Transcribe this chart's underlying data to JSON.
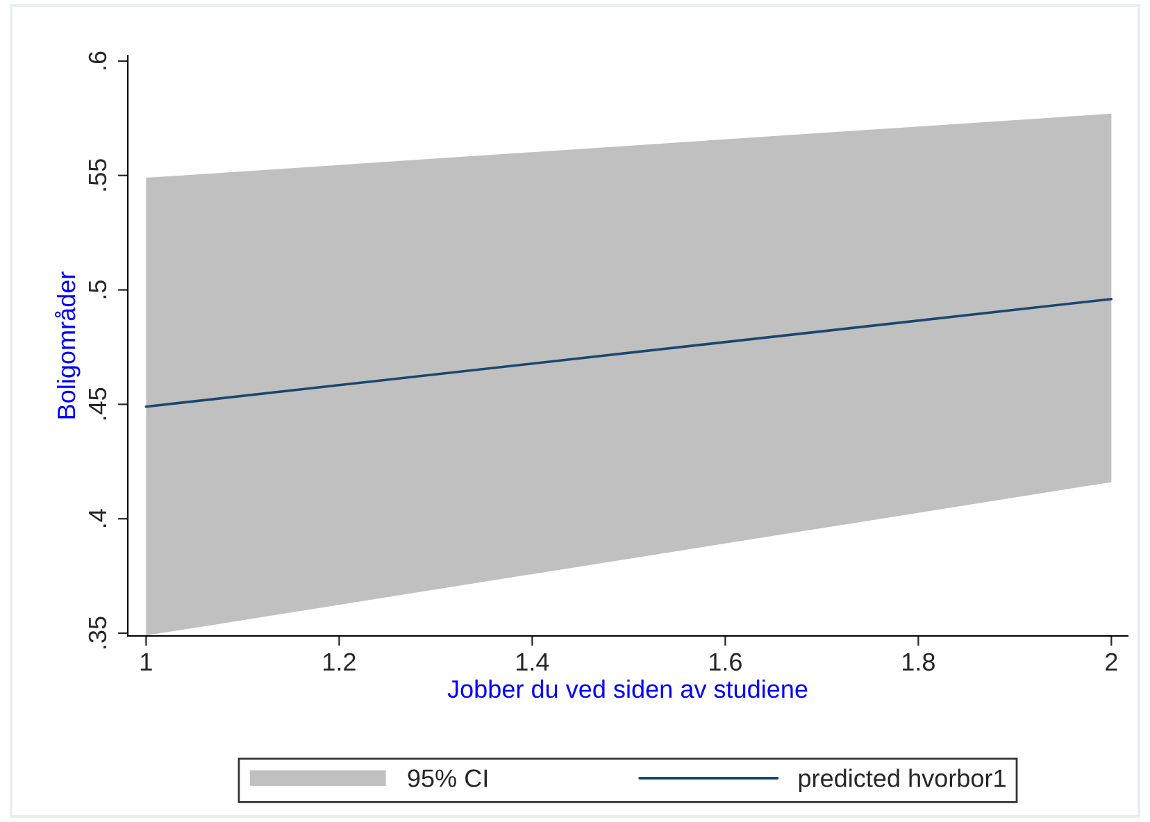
{
  "chart_data": {
    "type": "line",
    "xlabel": "Jobber du ved siden av studiene",
    "ylabel": "Boligområder",
    "x": [
      1,
      2
    ],
    "series": [
      {
        "name": "predicted hvorbor1",
        "type": "line",
        "color": "#1a476f",
        "values": [
          0.449,
          0.496
        ],
        "lower": [
          0.349,
          0.416
        ],
        "upper": [
          0.549,
          0.577
        ]
      }
    ],
    "annotations": [
      "95% CI"
    ],
    "xlim": [
      0.981,
      2.017
    ],
    "ylim": [
      0.3488,
      0.6024
    ],
    "xticks": [
      1,
      1.2,
      1.4,
      1.6,
      1.8,
      2
    ],
    "yticks": [
      {
        "value": 0.35,
        "label": ".35"
      },
      {
        "value": 0.4,
        "label": ".4"
      },
      {
        "value": 0.45,
        "label": ".45"
      },
      {
        "value": 0.5,
        "label": ".5"
      },
      {
        "value": 0.55,
        "label": ".55"
      },
      {
        "value": 0.6,
        "label": ".6"
      }
    ],
    "grid": false,
    "legend": "bottom",
    "line_style": "solid",
    "marker": "none"
  }
}
